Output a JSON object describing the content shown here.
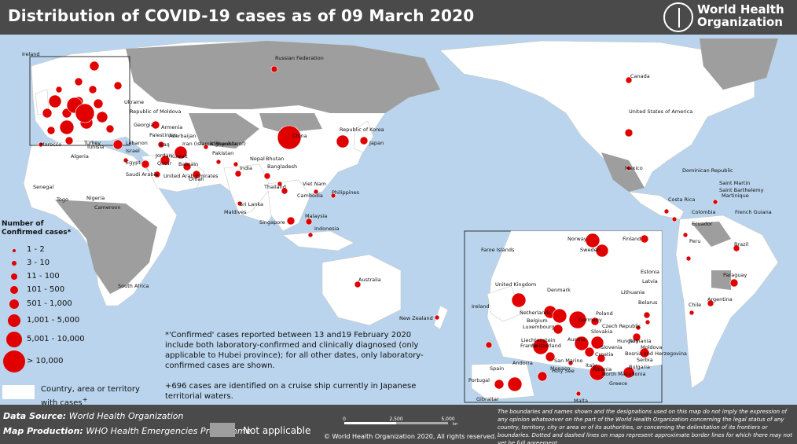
{
  "title": "Distribution of COVID-19 cases as of 09 March 2020",
  "org": {
    "line1": "World Health",
    "line2": "Organization"
  },
  "colors": {
    "bubble": "#e00000",
    "land": "#ffffff",
    "not_applicable": "#9e9e9e",
    "ocean": "#b9d4ec",
    "header": "#4a4a4a"
  },
  "legend": {
    "title": "Number of Confirmed cases*",
    "bins": [
      "1 - 2",
      "3 - 10",
      "11 - 100",
      "101 - 500",
      "501 - 1,000",
      "1,001 - 5,000",
      "5,001 - 10,000",
      "> 10,000"
    ],
    "country_label_line1": "Country, area or territory",
    "country_label_line2": "with cases",
    "country_label_mark": "+"
  },
  "notes": {
    "confirmed": "*'Confirmed' cases reported between 13 and19 February 2020 include both laboratory-confirmed and clinically diagnosed (only applicable to Hubei province); for all other dates, only laboratory-confirmed cases are shown.",
    "cruise": "+696 cases are identified on a cruise ship currently in Japanese territorial waters."
  },
  "footer": {
    "data_source_label": "Data Source:",
    "data_source": "World Health Organization",
    "map_production_label": "Map Production:",
    "map_production": "WHO Health Emergencies Programme",
    "not_applicable": "Not applicable",
    "scale_labels": [
      "0",
      "2,500",
      "5,000"
    ],
    "scale_unit": "km",
    "copyright": "© World Health Organization 2020, All rights reserved.",
    "disclaimer": "The boundaries and names shown and the designations used on this map do not imply the expression of any opinion whatsoever on the part of the World Health Organization concerning the legal status of any country, territory, city or area or of its authorities, or concerning the delimitation of its frontiers or boundaries. Dotted and dashed lines on maps represent approximate border lines for which there may not yet be full agreement."
  },
  "countries": [
    {
      "name": "China",
      "bin": 7
    },
    {
      "name": "Republic of Korea",
      "bin": 5
    },
    {
      "name": "Iran (Islamic Republic of)",
      "bin": 5
    },
    {
      "name": "Japan",
      "bin": 3
    },
    {
      "name": "Italy",
      "bin": 5
    },
    {
      "name": "France",
      "bin": 4
    },
    {
      "name": "Germany",
      "bin": 4
    },
    {
      "name": "Spain",
      "bin": 3
    },
    {
      "name": "United States of America",
      "bin": 3
    },
    {
      "name": "Canada",
      "bin": 2
    },
    {
      "name": "Russian Federation",
      "bin": 2
    },
    {
      "name": "Australia",
      "bin": 2
    },
    {
      "name": "India",
      "bin": 2
    },
    {
      "name": "Singapore",
      "bin": 3
    },
    {
      "name": "Malaysia",
      "bin": 2
    },
    {
      "name": "Thailand",
      "bin": 2
    },
    {
      "name": "Philippines",
      "bin": 1
    },
    {
      "name": "Brazil",
      "bin": 2
    }
  ],
  "map_labels": {
    "world": [
      "Ireland",
      "Russian Federation",
      "Ukraine",
      "Republic of Moldova",
      "Georgia",
      "Armenia",
      "Azerbaijan",
      "Turkey",
      "Lebanon",
      "Israel",
      "Palestinian",
      "Iraq",
      "Afghanistan",
      "Pakistan",
      "Jordan",
      "Kuwait",
      "Bahrain",
      "Qatar",
      "Egypt",
      "Saudi Arabia",
      "United Arab Emirates",
      "Oman",
      "Morocco",
      "Algeria",
      "Tunisia",
      "Senegal",
      "Togo",
      "Nigeria",
      "Cameroon",
      "South Africa",
      "Iran (Islamic Republic of)",
      "Nepal",
      "Bhutan",
      "Bangladesh",
      "India",
      "Sri Lanka",
      "Maldives",
      "China",
      "Republic of Korea",
      "Japan",
      "Thailand",
      "Cambodia",
      "Viet Nam",
      "Philippines",
      "Malaysia",
      "Singapore",
      "Indonesia",
      "Australia",
      "New Zealand",
      "Canada",
      "United States of America",
      "Mexico",
      "Dominican Republic",
      "Saint Martin",
      "Saint Barthelemy",
      "Martinique",
      "Costa Rica",
      "Colombia",
      "French Guiana",
      "Ecuador",
      "Peru",
      "Brazil",
      "Paraguay",
      "Chile",
      "Argentina"
    ],
    "europe": [
      "Faroe Islands",
      "Norway",
      "Sweden",
      "Finland",
      "Estonia",
      "Latvia",
      "Lithuania",
      "Denmark",
      "United Kingdom",
      "Ireland",
      "Netherlands",
      "Belgium",
      "Luxembourg",
      "Germany",
      "Poland",
      "Belarus",
      "Czech Republic",
      "Slovakia",
      "Liechtenstein",
      "Austria",
      "France",
      "Switzerland",
      "Hungary",
      "Romania",
      "Slovenia",
      "Croatia",
      "Bosnia and Herzegovina",
      "Serbia",
      "Moldova",
      "San Marino",
      "Monaco",
      "Holy See",
      "Andorra",
      "Italy",
      "Albania",
      "North Macedonia",
      "Bulgaria",
      "Greece",
      "Spain",
      "Portugal",
      "Gibraltar",
      "Malta"
    ]
  }
}
